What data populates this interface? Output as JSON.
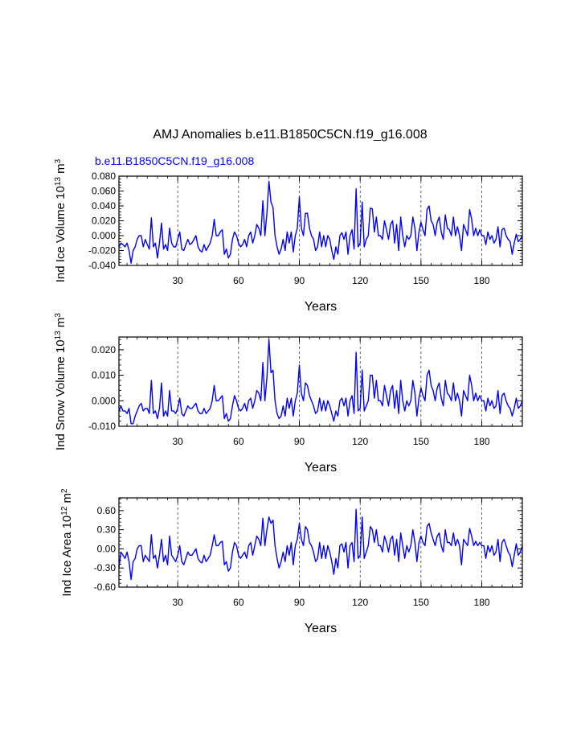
{
  "figure": {
    "title": "AMJ Anomalies b.e11.B1850C5CN.f19_g16.008",
    "subtitle": "b.e11.B1850C5CN.f19_g16.008",
    "line_color": "#0000ff"
  },
  "chart_data": [
    {
      "type": "line",
      "xlabel": "Years",
      "ylabel": {
        "pre": "Ind Ice Volume 10",
        "exp1": "13",
        "mid": " m",
        "exp2": "3"
      },
      "xlim": [
        1,
        200
      ],
      "ylim": [
        -0.04,
        0.08
      ],
      "xticks": [
        30,
        60,
        90,
        120,
        150,
        180
      ],
      "xtick_labels": [
        "30",
        "60",
        "90",
        "120",
        "150",
        "180"
      ],
      "yticks": [
        -0.04,
        -0.02,
        0.0,
        0.02,
        0.04,
        0.06,
        0.08
      ],
      "ytick_labels": [
        "-0.040",
        "-0.020",
        "0.000",
        "0.020",
        "0.040",
        "0.060",
        "0.080"
      ],
      "grid": "vertical dashed at x ticks",
      "series": [
        {
          "name": "Ind Ice Volume",
          "values": [
            -0.015,
            -0.01,
            -0.012,
            -0.015,
            -0.01,
            -0.02,
            -0.037,
            -0.02,
            -0.015,
            -0.005,
            0.0,
            0.0,
            -0.015,
            -0.005,
            -0.012,
            -0.018,
            0.024,
            -0.015,
            -0.01,
            -0.03,
            -0.01,
            0.017,
            -0.018,
            -0.012,
            -0.02,
            0.01,
            -0.01,
            -0.015,
            -0.015,
            -0.005,
            0.005,
            -0.018,
            -0.02,
            -0.012,
            -0.005,
            -0.012,
            -0.01,
            -0.005,
            0.0,
            -0.015,
            -0.02,
            -0.022,
            -0.012,
            -0.02,
            -0.015,
            -0.01,
            0.0,
            0.022,
            0.0,
            0.0,
            0.005,
            0.008,
            -0.025,
            -0.018,
            -0.03,
            -0.025,
            -0.005,
            0.005,
            0.0,
            -0.01,
            -0.015,
            -0.012,
            -0.005,
            -0.015,
            0.0,
            0.005,
            -0.01,
            0.0,
            0.015,
            0.01,
            0.0,
            0.047,
            0.0,
            0.03,
            0.073,
            0.045,
            0.038,
            0.0,
            -0.015,
            -0.025,
            -0.018,
            -0.005,
            -0.02,
            0.005,
            -0.01,
            0.005,
            -0.022,
            0.0,
            0.01,
            0.052,
            0.01,
            0.0,
            0.03,
            0.03,
            0.01,
            0.0,
            -0.005,
            -0.02,
            -0.015,
            0.005,
            -0.015,
            0.0,
            -0.015,
            0.0,
            -0.005,
            -0.02,
            -0.032,
            -0.015,
            -0.025,
            0.0,
            0.004,
            -0.005,
            0.005,
            -0.025,
            0.0,
            0.008,
            -0.018,
            0.063,
            -0.015,
            -0.01,
            0.045,
            -0.015,
            -0.005,
            0.0,
            0.037,
            0.036,
            0.005,
            0.025,
            0.0,
            0.0,
            -0.005,
            0.02,
            0.008,
            -0.005,
            0.015,
            0.02,
            -0.01,
            0.015,
            -0.02,
            0.025,
            0.0,
            -0.015,
            0.0,
            -0.005,
            0.0,
            0.025,
            0.01,
            -0.02,
            0.005,
            0.018,
            0.008,
            0.0,
            0.035,
            0.04,
            0.02,
            0.015,
            0.0,
            0.018,
            0.025,
            0.005,
            -0.005,
            0.028,
            0.01,
            0.008,
            0.0,
            0.025,
            0.0,
            0.012,
            0.0,
            -0.02,
            0.015,
            0.008,
            0.0,
            0.035,
            0.022,
            0.0,
            0.01,
            0.0,
            0.008,
            0.0,
            0.0,
            -0.012,
            0.005,
            -0.005,
            0.0,
            -0.01,
            -0.005,
            0.012,
            -0.015,
            0.008,
            0.01,
            0.0,
            -0.005,
            -0.008,
            -0.025,
            -0.01,
            0.002,
            -0.008,
            -0.005,
            0.0
          ]
        }
      ]
    },
    {
      "type": "line",
      "xlabel": "Years",
      "ylabel": {
        "pre": "Ind Snow Volume 10",
        "exp1": "13",
        "mid": " m",
        "exp2": "3"
      },
      "xlim": [
        1,
        200
      ],
      "ylim": [
        -0.01,
        0.025
      ],
      "xticks": [
        30,
        60,
        90,
        120,
        150,
        180
      ],
      "xtick_labels": [
        "30",
        "60",
        "90",
        "120",
        "150",
        "180"
      ],
      "yticks": [
        -0.01,
        0.0,
        0.01,
        0.02
      ],
      "ytick_labels": [
        "-0.010",
        "0.000",
        "0.010",
        "0.020"
      ],
      "grid": "vertical dashed at x ticks",
      "series": [
        {
          "name": "Ind Snow Volume",
          "values": [
            -0.004,
            -0.002,
            -0.004,
            -0.004,
            -0.005,
            -0.003,
            -0.009,
            -0.009,
            -0.006,
            -0.004,
            -0.002,
            -0.001,
            -0.004,
            -0.003,
            -0.003,
            -0.005,
            0.008,
            -0.005,
            -0.004,
            -0.007,
            -0.003,
            0.007,
            -0.006,
            -0.004,
            -0.006,
            0.004,
            -0.004,
            -0.004,
            -0.005,
            -0.003,
            0.001,
            -0.005,
            -0.006,
            -0.004,
            -0.002,
            -0.003,
            -0.003,
            -0.002,
            -0.001,
            -0.004,
            -0.005,
            -0.005,
            -0.003,
            -0.005,
            -0.004,
            -0.003,
            0.0,
            0.006,
            0.0,
            0.0,
            0.001,
            0.002,
            -0.007,
            -0.005,
            -0.008,
            -0.007,
            -0.002,
            0.002,
            0.0,
            -0.003,
            -0.004,
            -0.003,
            -0.001,
            -0.004,
            0.0,
            0.001,
            -0.003,
            0.0,
            0.004,
            0.003,
            0.0,
            0.015,
            0.0,
            0.009,
            0.024,
            0.011,
            0.012,
            0.0,
            -0.005,
            -0.007,
            -0.006,
            -0.002,
            -0.006,
            0.001,
            -0.003,
            0.001,
            -0.006,
            0.0,
            0.003,
            0.014,
            0.003,
            0.0,
            0.007,
            0.006,
            0.002,
            0.0,
            -0.002,
            -0.005,
            -0.004,
            0.001,
            -0.004,
            0.0,
            -0.004,
            0.0,
            -0.002,
            -0.005,
            -0.008,
            -0.004,
            -0.006,
            0.0,
            0.001,
            -0.002,
            0.001,
            -0.006,
            0.0,
            0.002,
            -0.005,
            0.019,
            -0.004,
            -0.003,
            0.012,
            -0.004,
            -0.002,
            0.0,
            0.01,
            0.01,
            0.001,
            0.008,
            0.0,
            0.0,
            -0.002,
            0.006,
            0.002,
            -0.002,
            0.004,
            0.006,
            -0.003,
            0.004,
            -0.005,
            0.008,
            0.0,
            -0.004,
            0.0,
            -0.002,
            0.0,
            0.008,
            0.003,
            -0.006,
            0.001,
            0.005,
            0.002,
            0.0,
            0.01,
            0.012,
            0.006,
            0.004,
            0.0,
            0.005,
            0.007,
            0.001,
            -0.002,
            0.008,
            0.003,
            0.002,
            0.0,
            0.007,
            0.0,
            0.003,
            0.0,
            -0.006,
            0.004,
            0.002,
            0.0,
            0.01,
            0.006,
            0.0,
            0.003,
            0.0,
            0.002,
            0.0,
            0.0,
            -0.004,
            0.001,
            -0.002,
            0.0,
            -0.003,
            -0.002,
            0.004,
            -0.005,
            0.002,
            0.003,
            0.0,
            -0.002,
            -0.003,
            -0.006,
            -0.003,
            0.001,
            -0.003,
            -0.002,
            0.0
          ]
        }
      ]
    },
    {
      "type": "line",
      "xlabel": "Years",
      "ylabel": {
        "pre": "Ind Ice Area 10",
        "exp1": "12",
        "mid": " m",
        "exp2": "2"
      },
      "xlim": [
        1,
        200
      ],
      "ylim": [
        -0.6,
        0.8
      ],
      "xticks": [
        30,
        60,
        90,
        120,
        150,
        180
      ],
      "xtick_labels": [
        "30",
        "60",
        "90",
        "120",
        "150",
        "180"
      ],
      "yticks": [
        -0.6,
        -0.3,
        0.0,
        0.3,
        0.6
      ],
      "ytick_labels": [
        "-0.60",
        "-0.30",
        "0.00",
        "0.30",
        "0.60"
      ],
      "grid": "vertical dashed at x ticks",
      "series": [
        {
          "name": "Ind Ice Area",
          "values": [
            -0.3,
            -0.05,
            -0.1,
            -0.15,
            -0.05,
            -0.2,
            -0.48,
            -0.2,
            -0.15,
            0.0,
            0.05,
            0.05,
            -0.2,
            -0.1,
            -0.15,
            -0.2,
            0.22,
            -0.15,
            -0.1,
            -0.3,
            -0.1,
            0.15,
            -0.2,
            -0.1,
            -0.25,
            0.2,
            -0.1,
            -0.15,
            -0.2,
            -0.1,
            0.05,
            -0.2,
            -0.25,
            -0.15,
            -0.05,
            -0.1,
            -0.1,
            -0.05,
            0.0,
            -0.15,
            -0.2,
            -0.22,
            -0.1,
            -0.2,
            -0.15,
            -0.1,
            0.05,
            0.22,
            0.05,
            0.05,
            0.1,
            0.12,
            -0.25,
            -0.2,
            -0.35,
            -0.3,
            -0.05,
            0.1,
            0.05,
            -0.1,
            -0.15,
            -0.1,
            -0.05,
            -0.15,
            0.05,
            0.1,
            -0.1,
            0.05,
            0.2,
            0.15,
            0.05,
            0.48,
            0.05,
            0.3,
            0.5,
            0.4,
            0.45,
            0.05,
            -0.15,
            -0.3,
            -0.2,
            -0.05,
            -0.2,
            0.05,
            -0.1,
            0.1,
            -0.25,
            0.05,
            0.15,
            0.4,
            0.15,
            0.05,
            0.35,
            0.3,
            0.1,
            0.05,
            -0.05,
            -0.2,
            -0.15,
            0.1,
            -0.15,
            0.05,
            -0.15,
            0.05,
            -0.05,
            -0.2,
            -0.4,
            -0.15,
            -0.3,
            0.05,
            0.08,
            -0.05,
            0.1,
            -0.3,
            0.05,
            0.1,
            -0.2,
            0.62,
            -0.15,
            -0.1,
            0.5,
            -0.15,
            -0.05,
            0.05,
            0.35,
            0.3,
            0.1,
            0.3,
            0.05,
            0.05,
            -0.05,
            0.2,
            0.1,
            -0.05,
            0.15,
            0.2,
            -0.1,
            0.15,
            -0.2,
            0.25,
            0.05,
            -0.15,
            0.05,
            -0.05,
            0.05,
            0.3,
            0.1,
            -0.2,
            0.1,
            0.2,
            0.1,
            0.05,
            0.35,
            0.4,
            0.25,
            0.15,
            0.05,
            0.2,
            0.25,
            0.05,
            -0.05,
            0.3,
            0.1,
            0.1,
            0.05,
            0.25,
            0.05,
            0.15,
            0.05,
            -0.25,
            0.15,
            0.1,
            0.05,
            0.32,
            0.2,
            0.05,
            0.12,
            0.05,
            0.1,
            0.05,
            0.05,
            -0.15,
            0.05,
            -0.05,
            0.05,
            -0.1,
            -0.05,
            0.15,
            -0.2,
            0.1,
            0.15,
            0.05,
            -0.05,
            -0.1,
            -0.28,
            -0.1,
            0.08,
            -0.1,
            -0.05,
            0.05
          ]
        }
      ]
    }
  ]
}
